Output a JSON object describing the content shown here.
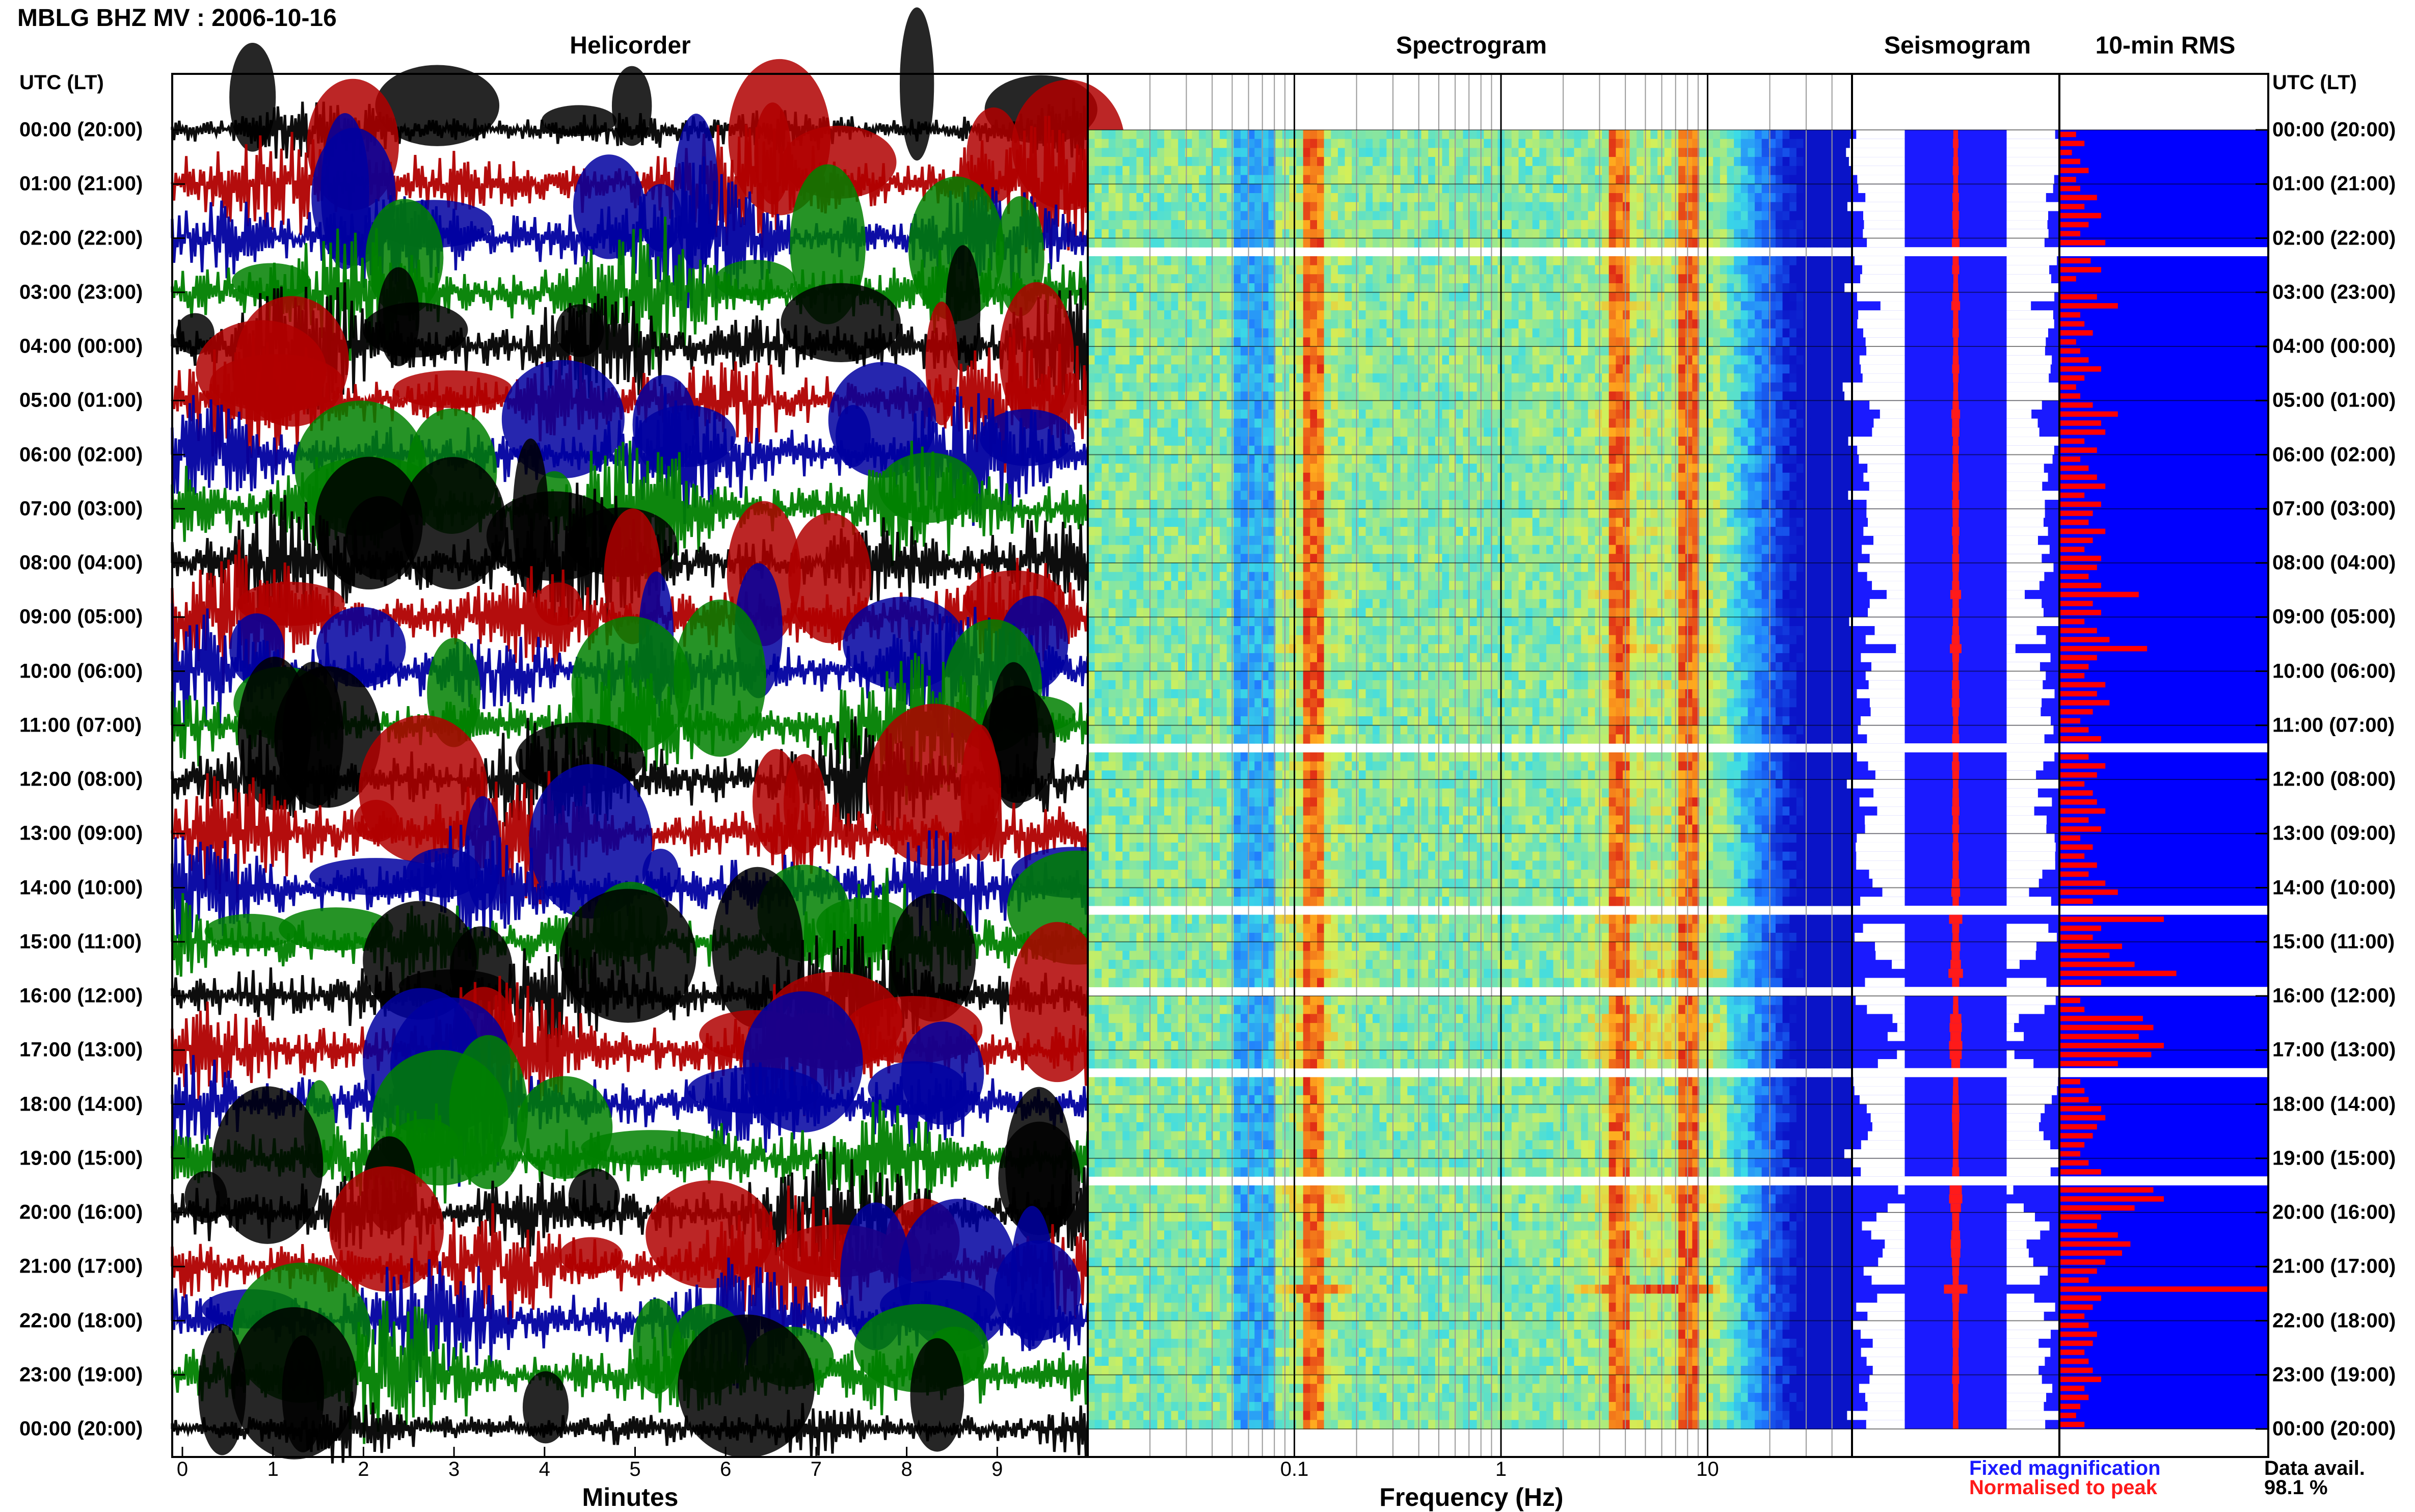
{
  "title": "MBLG BHZ MV : 2006-10-16",
  "panels": {
    "helicorder": "Helicorder",
    "spectrogram": "Spectrogram",
    "seismogram": "Seismogram",
    "rms": "10-min RMS"
  },
  "axis_header": "UTC (LT)",
  "time_labels": [
    "00:00 (20:00)",
    "01:00 (21:00)",
    "02:00 (22:00)",
    "03:00 (23:00)",
    "04:00 (00:00)",
    "05:00 (01:00)",
    "06:00 (02:00)",
    "07:00 (03:00)",
    "08:00 (04:00)",
    "09:00 (05:00)",
    "10:00 (06:00)",
    "11:00 (07:00)",
    "12:00 (08:00)",
    "13:00 (09:00)",
    "14:00 (10:00)",
    "15:00 (11:00)",
    "16:00 (12:00)",
    "17:00 (13:00)",
    "18:00 (14:00)",
    "19:00 (15:00)",
    "20:00 (16:00)",
    "21:00 (17:00)",
    "22:00 (18:00)",
    "23:00 (19:00)",
    "00:00 (20:00)"
  ],
  "x_axes": {
    "minutes": {
      "label": "Minutes",
      "ticks": [
        "0",
        "1",
        "2",
        "3",
        "4",
        "5",
        "6",
        "7",
        "8",
        "9"
      ]
    },
    "frequency": {
      "label": "Frequency (Hz)",
      "ticks": [
        "0.1",
        "1",
        "10"
      ],
      "scale": "log"
    }
  },
  "legend": {
    "fixed": "Fixed magnification",
    "normalised": "Normalised to peak"
  },
  "data_availability": {
    "label": "Data avail.",
    "value": "98.1 %"
  },
  "colors": {
    "heli_traces": [
      "#000000",
      "#b00000",
      "#0000a0",
      "#008000"
    ],
    "fixed": "#1a1aff",
    "normalised": "#ff1a1a",
    "rms_background": "#0000ff",
    "rms_bars": "#ff0000"
  },
  "chart_data": {
    "type": "bar",
    "title": "10-min RMS",
    "categories_unit": "10-minute interval index (0-143)",
    "gaps_hours": [
      2.2,
      11.3,
      14.4,
      15.8,
      17.3,
      19.3
    ],
    "rms_relative": [
      0.08,
      0.12,
      0.06,
      0.1,
      0.14,
      0.08,
      0.1,
      0.18,
      0.12,
      0.2,
      0.14,
      0.1,
      0.22,
      0.34,
      0.15,
      0.2,
      0.08,
      0.0,
      0.18,
      0.28,
      0.1,
      0.12,
      0.16,
      0.08,
      0.1,
      0.14,
      0.2,
      0.12,
      0.08,
      0.1,
      0.16,
      0.28,
      0.2,
      0.22,
      0.12,
      0.18,
      0.1,
      0.14,
      0.18,
      0.22,
      0.12,
      0.2,
      0.16,
      0.14,
      0.22,
      0.16,
      0.12,
      0.2,
      0.18,
      0.14,
      0.2,
      0.38,
      0.16,
      0.2,
      0.12,
      0.18,
      0.24,
      0.42,
      0.18,
      0.14,
      0.12,
      0.22,
      0.18,
      0.24,
      0.16,
      0.1,
      0.14,
      0.2,
      0.26,
      0.14,
      0.22,
      0.18,
      0.12,
      0.16,
      0.18,
      0.22,
      0.14,
      0.2,
      0.1,
      0.16,
      0.12,
      0.18,
      0.14,
      0.22,
      0.28,
      0.16,
      0.18,
      0.5,
      0.2,
      0.16,
      0.3,
      0.24,
      0.36,
      0.56,
      0.2,
      0.14,
      0.1,
      0.12,
      0.4,
      0.45,
      0.38,
      0.5,
      0.44,
      0.28,
      0.16,
      0.1,
      0.12,
      0.14,
      0.2,
      0.22,
      0.18,
      0.16,
      0.12,
      0.1,
      0.14,
      0.2,
      0.3,
      0.45,
      0.5,
      0.36,
      0.2,
      0.18,
      0.28,
      0.34,
      0.3,
      0.22,
      0.18,
      0.14,
      1.0,
      0.2,
      0.16,
      0.12,
      0.14,
      0.18,
      0.16,
      0.12,
      0.14,
      0.16,
      0.2,
      0.12,
      0.14,
      0.1,
      0.08,
      0.12
    ],
    "spectral_peaks_hz": [
      0.12,
      3.8,
      8.0
    ]
  }
}
